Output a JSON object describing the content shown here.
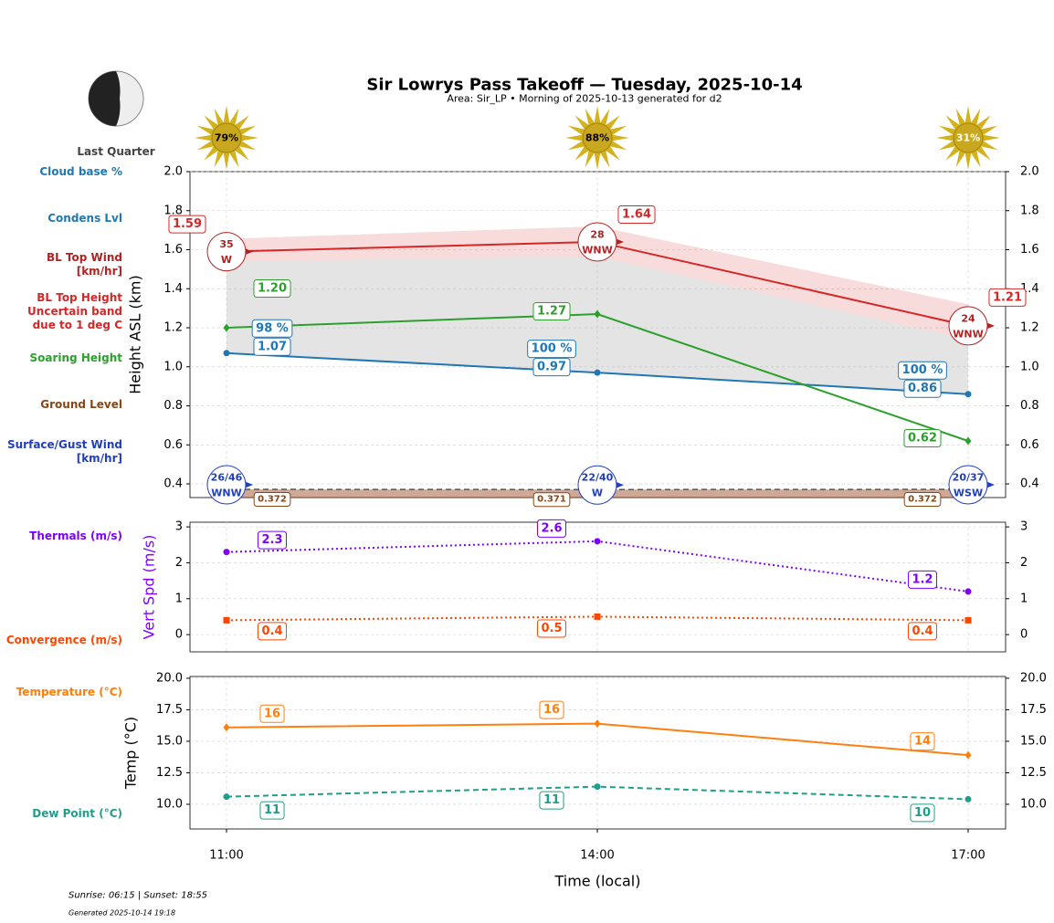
{
  "title": "Sir Lowrys Pass Takeoff — Tuesday, 2025-10-14",
  "subtitle": "Area: Sir_LP • Morning of 2025-10-13 generated for d2",
  "moon": "Last Quarter",
  "cloud_cover": {
    "values": [
      79,
      88,
      31
    ],
    "value_labels": [
      "79%",
      "88%",
      "31%"
    ]
  },
  "footer": {
    "sun": "Sunrise: 06:15 | Sunset: 18:55",
    "generated": "Generated 2025-10-14 19:18"
  },
  "chart_data": [
    {
      "type": "line",
      "y_label": "Height ASL (km)",
      "ylim": [
        0.33,
        2.0
      ],
      "yticks": [
        0.4,
        0.6,
        0.8,
        {
          "value": 1,
          "label": "1.0"
        },
        1.2,
        1.4,
        1.6,
        1.8,
        {
          "value": 2,
          "label": "2.0"
        }
      ],
      "grid": true,
      "series": [
        {
          "name": [
            "Cloud base %"
          ],
          "kind": "percent",
          "color": "#1f77b4",
          "values": [
            98,
            100,
            100
          ],
          "value_labels": [
            "98 %",
            "100 %",
            "100 %"
          ]
        },
        {
          "name": [
            "Condens Lvl"
          ],
          "kind": "line",
          "color": "#1f77b4",
          "marker": "circle",
          "dash": "solid",
          "values": [
            1.07,
            0.97,
            0.86
          ]
        },
        {
          "name": [
            "BL Top Wind",
            "[km/hr]"
          ],
          "kind": "wind",
          "color": "#b22222",
          "values": [
            35,
            28,
            24
          ],
          "directions": [
            "W",
            "WNW",
            "WNW"
          ]
        },
        {
          "name": [
            "BL Top Height",
            "Uncertain band",
            "due to 1 deg C"
          ],
          "kind": "line",
          "color": "#d62728",
          "marker": "none",
          "dash": "solid",
          "values": [
            1.59,
            1.64,
            1.21
          ],
          "band_low": [
            1.54,
            1.565,
            1.14
          ],
          "band_high": [
            1.655,
            1.72,
            1.32
          ]
        },
        {
          "name": [
            "Soaring Height"
          ],
          "kind": "line",
          "color": "#2ca02c",
          "marker": "diamond",
          "dash": "solid",
          "values": [
            1.2,
            1.27,
            0.62
          ],
          "value_labels": [
            "1.20",
            "1.27",
            "0.62"
          ]
        },
        {
          "name": [
            "Ground Level"
          ],
          "kind": "ground",
          "color": "#8b4513",
          "values": [
            0.372,
            0.371,
            0.372
          ]
        },
        {
          "name": [
            "Surface/Gust Wind",
            "[km/hr]"
          ],
          "kind": "wind",
          "color": "#1f3fbf",
          "values": [
            26,
            22,
            20
          ],
          "gust": [
            46,
            40,
            37
          ],
          "value_labels": [
            "26/46",
            "22/40",
            "20/37"
          ],
          "directions": [
            "WNW",
            "W",
            "WSW"
          ]
        }
      ]
    },
    {
      "type": "line",
      "y_label": "Vert Spd (m/s)",
      "y_label_color": "#7f00ff",
      "ylim": [
        -0.48,
        3.13
      ],
      "yticks": [
        0,
        1,
        2,
        3
      ],
      "grid": true,
      "series": [
        {
          "name": [
            "Thermals (m/s)"
          ],
          "kind": "line",
          "color": "#7f00ff",
          "marker": "circle",
          "dash": "dotted",
          "values": [
            2.3,
            2.6,
            1.2
          ]
        },
        {
          "name": [
            "Convergence (m/s)"
          ],
          "kind": "line",
          "color": "#ff4500",
          "marker": "square",
          "dash": "dotted",
          "values": [
            0.4,
            0.5,
            0.4
          ]
        }
      ]
    },
    {
      "type": "line",
      "y_label": "Temp (°C)",
      "x_label": "Time (local)",
      "categories": [
        "11:00",
        "14:00",
        "17:00"
      ],
      "ylim": [
        8.04,
        20.14
      ],
      "yticks": [
        {
          "value": 10,
          "label": "10.0"
        },
        12.5,
        {
          "value": 15,
          "label": "15.0"
        },
        17.5,
        {
          "value": 20,
          "label": "20.0"
        }
      ],
      "grid": true,
      "series": [
        {
          "name": [
            "Temperature (°C)"
          ],
          "kind": "line",
          "color": "#ff7f0e",
          "marker": "diamond",
          "dash": "solid",
          "values": [
            16.1,
            16.4,
            13.9
          ],
          "value_labels": [
            "16",
            "16",
            "14"
          ]
        },
        {
          "name": [
            "Dew Point (°C)"
          ],
          "kind": "line",
          "color": "#1f9e89",
          "marker": "circle",
          "dash": "dashed",
          "values": [
            10.6,
            11.4,
            10.4
          ],
          "value_labels": [
            "11",
            "11",
            "10"
          ]
        }
      ]
    }
  ]
}
